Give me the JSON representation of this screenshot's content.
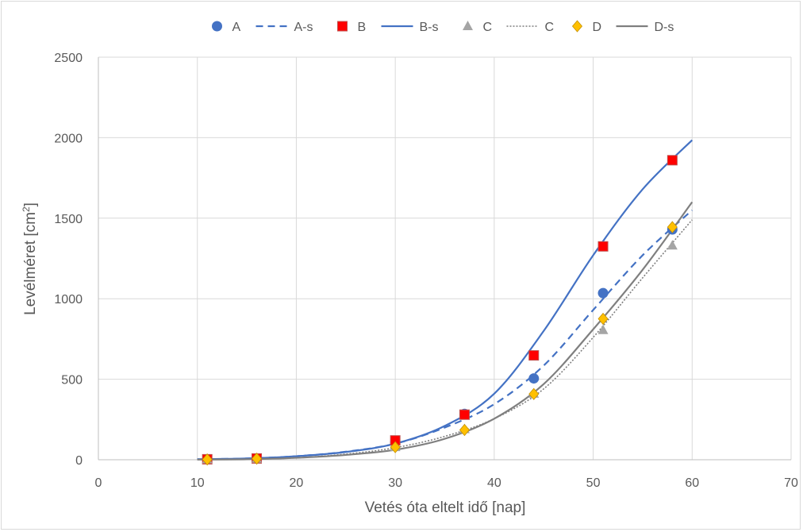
{
  "chart_data": {
    "type": "scatter",
    "title": "",
    "xlabel": "Vetés óta eltelt idő [nap]",
    "ylabel_main": "Levélméret [cm",
    "ylabel_sup": "2",
    "ylabel_end": "]",
    "xlim": [
      0,
      70
    ],
    "ylim": [
      0,
      2500
    ],
    "xticks": [
      0,
      10,
      20,
      30,
      40,
      50,
      60,
      70
    ],
    "yticks": [
      0,
      500,
      1000,
      1500,
      2000,
      2500
    ],
    "grid": true,
    "legend_position": "top",
    "x": [
      11,
      16,
      30,
      37,
      44,
      51,
      58
    ],
    "series": [
      {
        "name": "A",
        "kind": "marker",
        "marker": "circle",
        "color": "#4472C4",
        "values": [
          3,
          8,
          110,
          285,
          505,
          1035,
          1430
        ]
      },
      {
        "name": "A-s",
        "kind": "line",
        "dash": "dashed",
        "color": "#4472C4",
        "x": [
          10,
          15,
          20,
          25,
          30,
          35,
          40,
          45,
          50,
          55,
          60
        ],
        "values": [
          3,
          8,
          22,
          50,
          100,
          200,
          345,
          585,
          930,
          1270,
          1550
        ]
      },
      {
        "name": "B",
        "kind": "marker",
        "marker": "square",
        "color": "#FF0000",
        "stroke": "#C0504D",
        "values": [
          3,
          8,
          120,
          280,
          648,
          1325,
          1860
        ]
      },
      {
        "name": "B-s",
        "kind": "line",
        "dash": "solid",
        "color": "#4472C4",
        "x": [
          10,
          15,
          20,
          25,
          30,
          35,
          40,
          45,
          50,
          55,
          60
        ],
        "values": [
          3,
          8,
          22,
          48,
          100,
          210,
          410,
          800,
          1270,
          1680,
          1985
        ]
      },
      {
        "name": "C",
        "kind": "marker",
        "marker": "triangle",
        "color": "#A5A5A5",
        "values": [
          2,
          6,
          78,
          190,
          410,
          805,
          1330
        ]
      },
      {
        "name": "C",
        "kind": "line",
        "dash": "dotted",
        "color": "#7F7F7F",
        "x": [
          10,
          15,
          20,
          25,
          30,
          35,
          40,
          45,
          50,
          55,
          60
        ],
        "values": [
          1,
          3,
          12,
          35,
          75,
          145,
          255,
          440,
          760,
          1130,
          1490
        ]
      },
      {
        "name": "D",
        "kind": "marker",
        "marker": "diamond",
        "color": "#FFC000",
        "stroke": "#C49000",
        "values": [
          2,
          7,
          78,
          185,
          408,
          875,
          1445
        ]
      },
      {
        "name": "D-s",
        "kind": "line",
        "dash": "solid",
        "color": "#7F7F7F",
        "x": [
          10,
          15,
          20,
          25,
          30,
          35,
          40,
          45,
          50,
          55,
          60
        ],
        "values": [
          1,
          3,
          12,
          30,
          62,
          130,
          255,
          470,
          810,
          1180,
          1600
        ]
      }
    ]
  }
}
